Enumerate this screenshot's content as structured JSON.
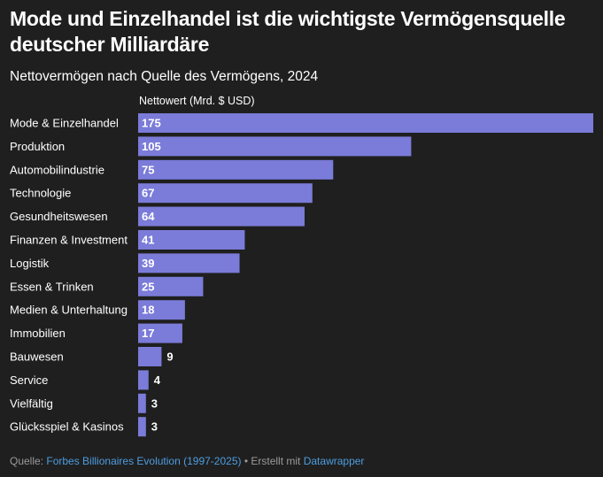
{
  "title": "Mode und Einzelhandel ist die wichtigste Vermögensquelle deutscher Milliardäre",
  "subtitle": "Nettovermögen nach Quelle des Vermögens, 2024",
  "footer": {
    "source_label": "Quelle:",
    "source_link": "Forbes Billionaires Evolution (1997-2025)",
    "separator": " • Erstellt mit ",
    "tool_link": "Datawrapper"
  },
  "colors": {
    "bar": "#7b7bd9",
    "background": "#1f1f1f",
    "link": "#4d9de0"
  },
  "chart_data": {
    "type": "bar",
    "orientation": "horizontal",
    "column_header": "Nettowert (Mrd. $ USD)",
    "categories": [
      "Mode & Einzelhandel",
      "Produktion",
      "Automobilindustrie",
      "Technologie",
      "Gesundheitswesen",
      "Finanzen & Investment",
      "Logistik",
      "Essen & Trinken",
      "Medien & Unterhaltung",
      "Immobilien",
      "Bauwesen",
      "Service",
      "Vielfältig",
      "Glücksspiel & Kasinos"
    ],
    "values": [
      175,
      105,
      75,
      67,
      64,
      41,
      39,
      25,
      18,
      17,
      9,
      4,
      3,
      3
    ],
    "xlim": [
      0,
      175
    ],
    "grid": false,
    "data_labels": true
  }
}
